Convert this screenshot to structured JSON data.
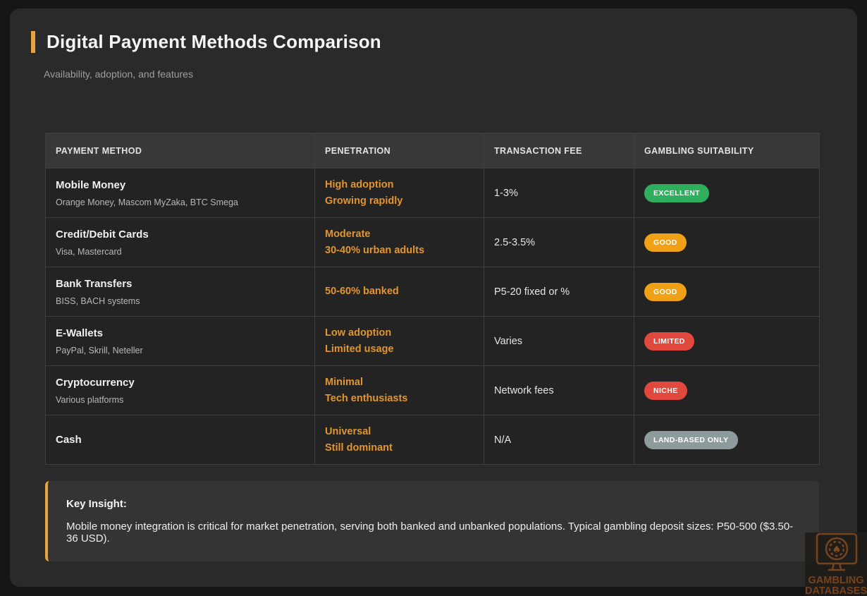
{
  "card": {
    "title": "Digital Payment Methods Comparison",
    "subtitle": "Availability, adoption, and features",
    "accent_color": "#e8a33d"
  },
  "table": {
    "columns": [
      "PAYMENT METHOD",
      "PENETRATION",
      "TRANSACTION FEE",
      "GAMBLING SUITABILITY"
    ],
    "rows": [
      {
        "method": "Mobile Money",
        "providers": "Orange Money, Mascom MyZaka, BTC Smega",
        "penetration": [
          "High adoption",
          "Growing rapidly"
        ],
        "fee": "1-3%",
        "badge": "EXCELLENT",
        "badge_color": "#2fae5e"
      },
      {
        "method": "Credit/Debit Cards",
        "providers": "Visa, Mastercard",
        "penetration": [
          "Moderate",
          "30-40% urban adults"
        ],
        "fee": "2.5-3.5%",
        "badge": "GOOD",
        "badge_color": "#f0a116"
      },
      {
        "method": "Bank Transfers",
        "providers": "BISS, BACH systems",
        "penetration": [
          "50-60% banked"
        ],
        "fee": "P5-20 fixed or %",
        "badge": "GOOD",
        "badge_color": "#f0a116"
      },
      {
        "method": "E-Wallets",
        "providers": "PayPal, Skrill, Neteller",
        "penetration": [
          "Low adoption",
          "Limited usage"
        ],
        "fee": "Varies",
        "badge": "LIMITED",
        "badge_color": "#e1493d"
      },
      {
        "method": "Cryptocurrency",
        "providers": "Various platforms",
        "penetration": [
          "Minimal",
          "Tech enthusiasts"
        ],
        "fee": "Network fees",
        "badge": "NICHE",
        "badge_color": "#e1493d"
      },
      {
        "method": "Cash",
        "providers": "",
        "penetration": [
          "Universal",
          "Still dominant"
        ],
        "fee": "N/A",
        "badge": "LAND-BASED ONLY",
        "badge_color": "#8d9b9c"
      }
    ]
  },
  "key_insight": {
    "title": "Key Insight:",
    "text": "Mobile money integration is critical for market penetration, serving both banked and unbanked populations. Typical gambling deposit sizes: P50-500 ($3.50-36 USD)."
  },
  "watermark": {
    "line1": "GAMBLING",
    "line2": "DATABASES"
  }
}
